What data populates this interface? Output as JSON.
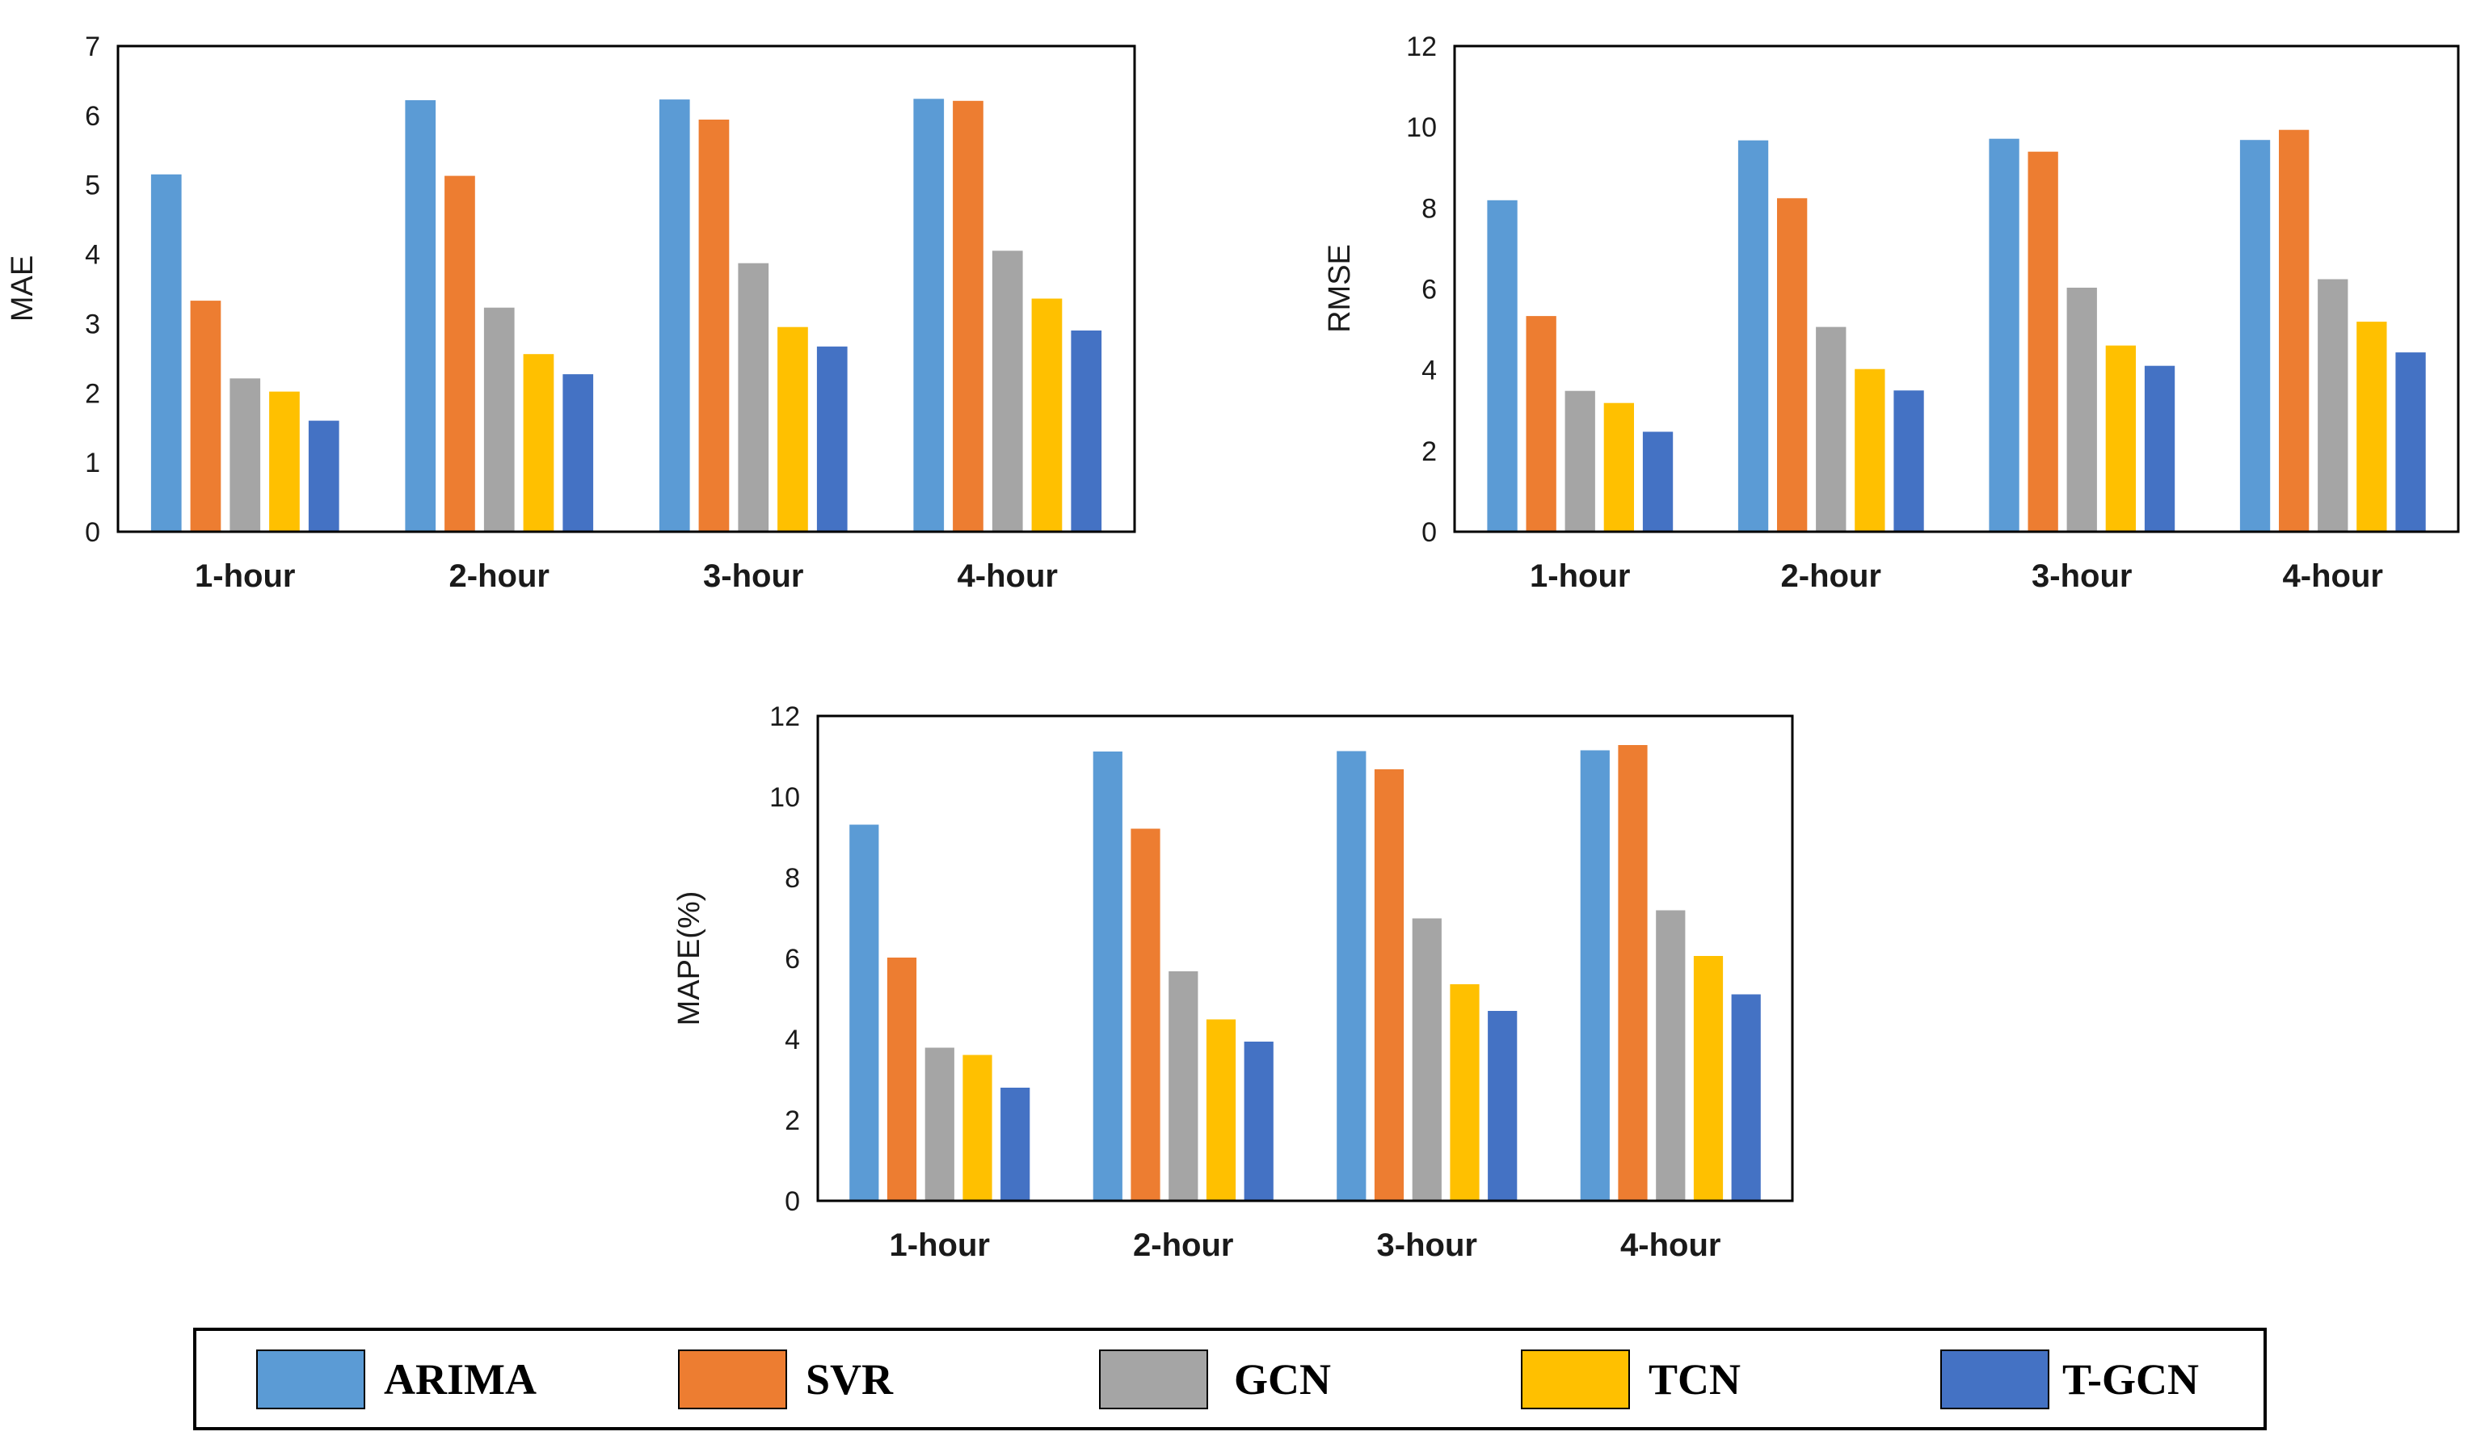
{
  "series_names": [
    "ARIMA",
    "SVR",
    "GCN",
    "TCN",
    "T-GCN"
  ],
  "colors": {
    "ARIMA": "#5b9bd5",
    "SVR": "#ed7d31",
    "GCN": "#a5a5a5",
    "TCN": "#ffc000",
    "T-GCN": "#4472c4"
  },
  "chart_data": [
    {
      "type": "bar",
      "title": "",
      "xlabel": "",
      "ylabel": "MAE",
      "ylim": [
        0,
        7
      ],
      "yticks": [
        0,
        1,
        2,
        3,
        4,
        5,
        6,
        7
      ],
      "categories": [
        "1-hour",
        "2-hour",
        "3-hour",
        "4-hour"
      ],
      "series": [
        {
          "name": "ARIMA",
          "values": [
            5.15,
            6.22,
            6.23,
            6.24
          ]
        },
        {
          "name": "SVR",
          "values": [
            3.33,
            5.13,
            5.94,
            6.21
          ]
        },
        {
          "name": "GCN",
          "values": [
            2.21,
            3.23,
            3.87,
            4.05
          ]
        },
        {
          "name": "TCN",
          "values": [
            2.02,
            2.56,
            2.95,
            3.36
          ]
        },
        {
          "name": "T-GCN",
          "values": [
            1.6,
            2.27,
            2.67,
            2.9
          ]
        }
      ]
    },
    {
      "type": "bar",
      "title": "",
      "xlabel": "",
      "ylabel": "RMSE",
      "ylim": [
        0,
        12
      ],
      "yticks": [
        0,
        2,
        4,
        6,
        8,
        10,
        12
      ],
      "categories": [
        "1-hour",
        "2-hour",
        "3-hour",
        "4-hour"
      ],
      "series": [
        {
          "name": "ARIMA",
          "values": [
            8.19,
            9.67,
            9.71,
            9.68
          ]
        },
        {
          "name": "SVR",
          "values": [
            5.33,
            8.24,
            9.39,
            9.93
          ]
        },
        {
          "name": "GCN",
          "values": [
            3.48,
            5.06,
            6.03,
            6.24
          ]
        },
        {
          "name": "TCN",
          "values": [
            3.18,
            4.02,
            4.6,
            5.19
          ]
        },
        {
          "name": "T-GCN",
          "values": [
            2.47,
            3.49,
            4.1,
            4.43
          ]
        }
      ]
    },
    {
      "type": "bar",
      "title": "",
      "xlabel": "",
      "ylabel": "MAPE(%)",
      "ylim": [
        0,
        12
      ],
      "yticks": [
        0,
        2,
        4,
        6,
        8,
        10,
        12
      ],
      "categories": [
        "1-hour",
        "2-hour",
        "3-hour",
        "4-hour"
      ],
      "series": [
        {
          "name": "ARIMA",
          "values": [
            9.31,
            11.12,
            11.13,
            11.15
          ]
        },
        {
          "name": "SVR",
          "values": [
            6.02,
            9.21,
            10.68,
            11.28
          ]
        },
        {
          "name": "GCN",
          "values": [
            3.79,
            5.68,
            6.99,
            7.19
          ]
        },
        {
          "name": "TCN",
          "values": [
            3.61,
            4.49,
            5.36,
            6.06
          ]
        },
        {
          "name": "T-GCN",
          "values": [
            2.8,
            3.94,
            4.7,
            5.11
          ]
        }
      ]
    }
  ]
}
